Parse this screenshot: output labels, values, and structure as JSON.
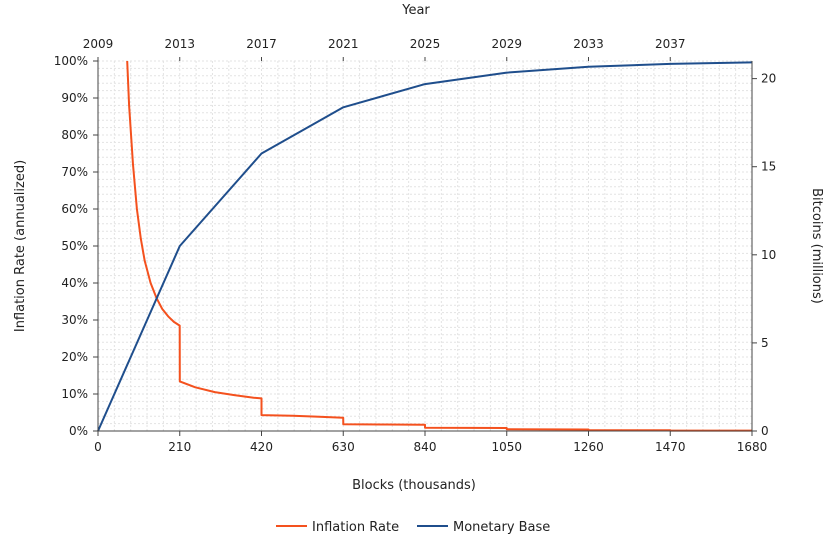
{
  "chart_data": {
    "type": "line",
    "x_top_label": "Year",
    "xlabel": "Blocks (thousands)",
    "ylabel_left": "Inflation Rate (annualized)",
    "ylabel_right": "Bitcoins (millions)",
    "x_range": [
      0,
      1680
    ],
    "x_ticks": [
      0,
      210,
      420,
      630,
      840,
      1050,
      1260,
      1470,
      1680
    ],
    "x_top_ticks": [
      {
        "block": 0,
        "label": "2009"
      },
      {
        "block": 210,
        "label": "2013"
      },
      {
        "block": 420,
        "label": "2017"
      },
      {
        "block": 630,
        "label": "2021"
      },
      {
        "block": 840,
        "label": "2025"
      },
      {
        "block": 1050,
        "label": "2029"
      },
      {
        "block": 1260,
        "label": "2033"
      },
      {
        "block": 1470,
        "label": "2037"
      }
    ],
    "y_left_range": [
      0,
      100
    ],
    "y_left_ticks": [
      "0%",
      "10%",
      "20%",
      "30%",
      "40%",
      "50%",
      "60%",
      "70%",
      "80%",
      "90%",
      "100%"
    ],
    "y_right_range": [
      0,
      21
    ],
    "y_right_ticks": [
      0,
      5,
      10,
      15,
      20
    ],
    "grid": true,
    "legend_position": "bottom-center",
    "series": [
      {
        "name": "Inflation Rate",
        "axis": "left",
        "color": "#f4511e",
        "points": [
          [
            75,
            100
          ],
          [
            80,
            88
          ],
          [
            90,
            72
          ],
          [
            100,
            60
          ],
          [
            110,
            52
          ],
          [
            120,
            46
          ],
          [
            135,
            40
          ],
          [
            150,
            36
          ],
          [
            165,
            33
          ],
          [
            180,
            31
          ],
          [
            195,
            29.5
          ],
          [
            209.9,
            28.5
          ],
          [
            210,
            13.4
          ],
          [
            250,
            11.8
          ],
          [
            300,
            10.5
          ],
          [
            350,
            9.7
          ],
          [
            400,
            9.0
          ],
          [
            419.9,
            8.8
          ],
          [
            420,
            4.3
          ],
          [
            500,
            4.1
          ],
          [
            560,
            3.9
          ],
          [
            629.9,
            3.6
          ],
          [
            630,
            1.8
          ],
          [
            740,
            1.75
          ],
          [
            839.9,
            1.7
          ],
          [
            840,
            0.9
          ],
          [
            950,
            0.85
          ],
          [
            1049.9,
            0.8
          ],
          [
            1050,
            0.45
          ],
          [
            1259.9,
            0.4
          ],
          [
            1260,
            0.2
          ],
          [
            1469.9,
            0.2
          ],
          [
            1470,
            0.1
          ],
          [
            1680,
            0.1
          ]
        ]
      },
      {
        "name": "Monetary Base",
        "axis": "right",
        "color": "#1f4e8c",
        "points": [
          [
            0,
            0
          ],
          [
            210,
            10.5
          ],
          [
            420,
            15.75
          ],
          [
            630,
            18.375
          ],
          [
            840,
            19.6875
          ],
          [
            1050,
            20.34375
          ],
          [
            1260,
            20.671875
          ],
          [
            1470,
            20.8359375
          ],
          [
            1680,
            20.918
          ]
        ]
      }
    ]
  }
}
